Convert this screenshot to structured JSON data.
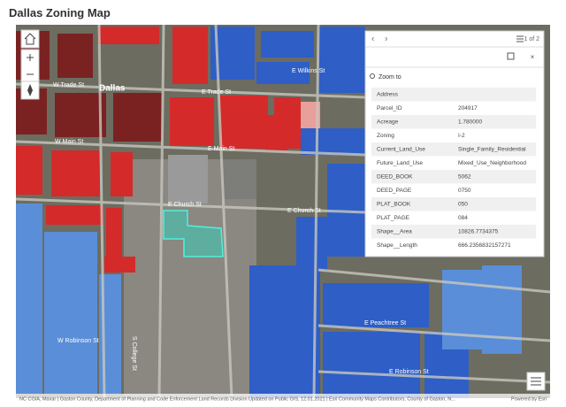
{
  "header": {
    "title": "Dallas Zoning Map"
  },
  "map_labels": [
    "Dallas",
    "W Trade St",
    "E Trade St",
    "W Main St",
    "E Main St",
    "E Church St",
    "E Church St",
    "E Wilkins St",
    "E Peachtree St",
    "E Robinson St",
    "W Robinson St",
    "S College St"
  ],
  "popup": {
    "pager": "1 of 2",
    "zoom": "Zoom to",
    "rows": [
      [
        "Address",
        ""
      ],
      [
        "Parcel_ID",
        "204917"
      ],
      [
        "Acreage",
        "1.780000"
      ],
      [
        "Zoning",
        "I-2"
      ],
      [
        "Current_Land_Use",
        "Single_Family_Residential"
      ],
      [
        "Future_Land_Use",
        "Mixed_Use_Neighborhood"
      ],
      [
        "DEED_BOOK",
        "5062"
      ],
      [
        "DEED_PAGE",
        "0750"
      ],
      [
        "PLAT_BOOK",
        "050"
      ],
      [
        "PLAT_PAGE",
        "084"
      ],
      [
        "Shape__Area",
        "10826.7734375"
      ],
      [
        "Shape__Length",
        "666.2356832157271"
      ]
    ]
  },
  "attribution": "NC CGIA, Maxar | Gaston County, Department of Planning and Code Enforcement Land Records Division Updated on Public GIS, 12.01.2021 | Esri Community Maps Contributors, County of Gaston, N...",
  "powered": "Powered by Esri"
}
